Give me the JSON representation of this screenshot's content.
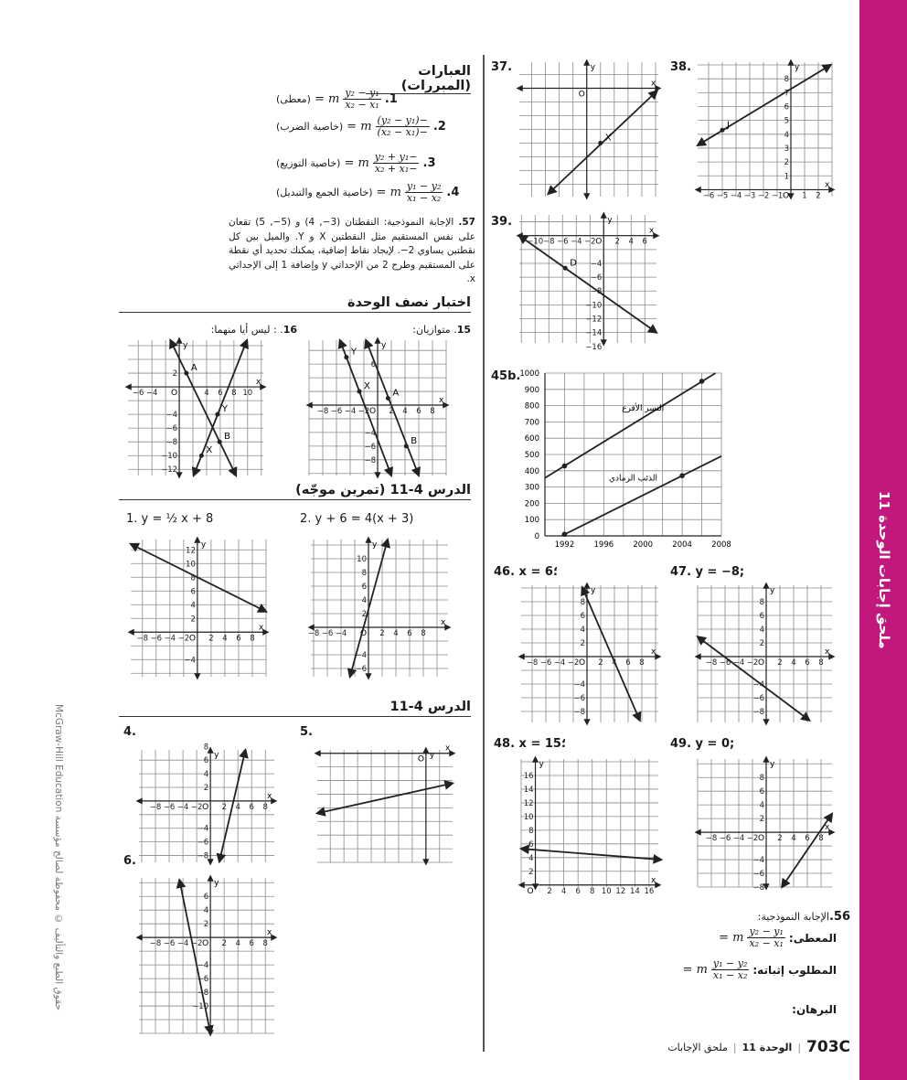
{
  "side_band": {
    "text": "ملحق إجابات الوحدة 11",
    "color": "#c2177c"
  },
  "copyright": "McGraw-Hill Education حقوق الطبع والتأليف © محفوظة لصالح مؤسسة",
  "statements": {
    "heading": "العبارات (المبررات)",
    "items": [
      {
        "num": ".1",
        "num_text": "1.",
        "lhs": "m =",
        "top": "y₂ − y₁",
        "bottom": "x₂ − x₁",
        "reason": "(معطى)"
      },
      {
        "num_text": "2.",
        "lhs": "m =",
        "top": "−(y₂ − y₁)",
        "bottom": "−(x₂ − x₁)",
        "reason": "(خاصية الضرب)"
      },
      {
        "num_text": "3.",
        "lhs": "m =",
        "top": "−y₂ + y₁",
        "bottom": "−x₂ + x₁",
        "reason": "(خاصية التوزيع)"
      },
      {
        "num_text": "4.",
        "lhs": "m =",
        "top": "y₁ − y₂",
        "bottom": "x₁ − x₂",
        "reason": "(خاصية الجمع والتبديل)"
      }
    ]
  },
  "item57": {
    "num": "57.",
    "text": "الإجابة النموذجية: النقطتان (3−, 4) و (5−, 5) تقعان على نفس المستقيم مثل النقطتين X و Y. والميل بين كل نقطتين يساوي 2−. لإيجاد نقاط إضافية، يمكنك تحديد أي نقطة على المستقيم وطرح 2 من الإحداثي y وإضافة 1 إلى الإحداثي x."
  },
  "midchapter": {
    "heading": "اختبار نصف الوحدة",
    "item15": {
      "num": "15",
      "text": ". متوازيان:"
    },
    "item16": {
      "num": "16",
      "text": ". : ليس أيا منهما:"
    }
  },
  "lesson_guided": {
    "heading": "الدرس 4-11 (تمرين موجّه)",
    "item1": "1. y = ½ x + 8",
    "item2": "2. y + 6 = 4(x + 3)"
  },
  "lesson": {
    "heading": "الدرس 4-11",
    "item4": "4.",
    "item5": "5.",
    "item6": "6."
  },
  "right": {
    "item37": "37.",
    "item38": "38.",
    "item39": "39.",
    "item45b": "45b.",
    "item46": "46. x = 6؛",
    "item47": "47. y = −8;",
    "item48": "48. x = 15؛",
    "item49": "49. y = 0;"
  },
  "item56": {
    "num": "56.",
    "intro": "الإجابة النموذجية:",
    "given_label": "المعطى:",
    "given_top": "y₂ − y₁",
    "given_bottom": "x₂ − x₁",
    "prove_label": "المطلوب إثباته:",
    "prove_top": "y₁ − y₂",
    "prove_bottom": "x₁ − x₂",
    "lhs": "m =",
    "proof_label": "البرهان:"
  },
  "footer": {
    "page": "703C",
    "unit": "الوحدة 11",
    "section": "ملحق الإجابات"
  },
  "graphs": {
    "g37": {
      "xlim": [
        -4.9,
        5.2
      ],
      "ylim": [
        -7.9,
        1.9
      ],
      "step": 1,
      "lines": [
        [
          -2.8,
          -7.7,
          5.1,
          -0.2
        ]
      ],
      "points": [
        {
          "x": 1,
          "y": -4,
          "label": "X"
        }
      ],
      "xticks": [],
      "yticks": []
    },
    "g38": {
      "xlim": [
        -6.8,
        3
      ],
      "ylim": [
        -0.5,
        9.2
      ],
      "step": 1,
      "lines": [
        [
          -6.8,
          3.2,
          2.9,
          9
        ]
      ],
      "points": [
        {
          "x": -5,
          "y": 4.3,
          "label": "J"
        }
      ],
      "xticks": [
        -6,
        -5,
        -4,
        -3,
        -2,
        -1,
        1,
        2
      ],
      "yticks": [
        1,
        2,
        3,
        4,
        5,
        6,
        7,
        8
      ]
    },
    "g39": {
      "xlim": [
        -12.3,
        7.7
      ],
      "ylim": [
        -15.5,
        3
      ],
      "step": 2,
      "lines": [
        [
          -12.3,
          0,
          7.7,
          -14
        ]
      ],
      "points": [
        {
          "x": -5.6,
          "y": -4.7,
          "label": "D"
        }
      ],
      "xticks": [
        -10,
        -8,
        -6,
        -4,
        -2,
        2,
        4,
        6
      ],
      "yticks": [
        -4,
        -6,
        -8,
        -10,
        -12,
        -14,
        -16
      ]
    },
    "g15": {
      "xlim": [
        -10,
        10
      ],
      "ylim": [
        -10.3,
        9.5
      ],
      "step": 2,
      "lines": [
        [
          -5.5,
          9.5,
          2,
          -10.3
        ],
        [
          -1.7,
          9.5,
          6,
          -10.3
        ]
      ],
      "points": [
        {
          "x": -4.55,
          "y": 7,
          "label": "Y"
        },
        {
          "x": -2.66,
          "y": 2,
          "label": "X"
        },
        {
          "x": 1.52,
          "y": 1,
          "label": "A"
        },
        {
          "x": 4.17,
          "y": -6,
          "label": "B"
        }
      ],
      "xticks": [
        -8,
        -6,
        -4,
        -2,
        2,
        4,
        6,
        8
      ],
      "yticks": [
        6,
        -4,
        -6,
        -8
      ]
    },
    "g16": {
      "xlim": [
        -7.5,
        12.3
      ],
      "ylim": [
        -12.9,
        6.8
      ],
      "step": 2,
      "lines": [
        [
          -1.3,
          6.8,
          8.3,
          -12.9
        ],
        [
          2.1,
          -12.9,
          9.9,
          6.8
        ]
      ],
      "points": [
        {
          "x": 1.04,
          "y": 2,
          "label": "A"
        },
        {
          "x": 5.6,
          "y": -4,
          "label": "Y"
        },
        {
          "x": 3.25,
          "y": -10,
          "label": "X"
        },
        {
          "x": 5.9,
          "y": -8,
          "label": "B"
        }
      ],
      "xticks": [
        -6,
        -4,
        4,
        6,
        8,
        10
      ],
      "yticks": [
        2,
        -4,
        -6,
        -8,
        -10,
        -12
      ]
    },
    "g1": {
      "xlim": [
        -9.7,
        10
      ],
      "ylim": [
        -6.5,
        13.5
      ],
      "step": 2,
      "lines": [
        [
          -9.7,
          12.85,
          10,
          3
        ]
      ],
      "points": [],
      "xticks": [
        -8,
        -6,
        -4,
        -2,
        2,
        4,
        6,
        8
      ],
      "yticks": [
        12,
        10,
        8,
        6,
        4,
        2,
        -4
      ]
    },
    "g2": {
      "xlim": [
        -8.4,
        11.6
      ],
      "ylim": [
        -7.2,
        12.8
      ],
      "step": 2,
      "lines": [
        [
          -2.7,
          -7.2,
          2.8,
          12.8
        ]
      ],
      "points": [],
      "xticks": [
        -8,
        -6,
        -4,
        2,
        4,
        6,
        8
      ],
      "yticks": [
        10,
        8,
        6,
        4,
        2,
        -4,
        -6
      ]
    },
    "g4": {
      "xlim": [
        -10.4,
        9.3
      ],
      "ylim": [
        -9,
        7.5
      ],
      "step": 2,
      "lines": [
        [
          1.3,
          -8.9,
          5.1,
          7.5
        ]
      ],
      "points": [],
      "xticks": [
        -8,
        -6,
        -4,
        -2,
        2,
        4,
        6,
        8
      ],
      "yticks": [
        8,
        6,
        4,
        2,
        -4,
        -6,
        -8
      ]
    },
    "g5": {
      "xlim": [
        -15.9,
        3.9
      ],
      "ylim": [
        -16,
        0.5
      ],
      "step": 2,
      "lines": [
        [
          -15.9,
          -8.8,
          3.9,
          -4.4
        ]
      ],
      "points": [],
      "xticks": [],
      "yticks": []
    },
    "g6": {
      "xlim": [
        -10.4,
        9.3
      ],
      "ylim": [
        -14,
        8.7
      ],
      "step": 2,
      "lines": [
        [
          -4.5,
          8.4,
          0,
          -14
        ]
      ],
      "points": [],
      "xticks": [
        -8,
        -6,
        -4,
        -2,
        2,
        4,
        6,
        8
      ],
      "yticks": [
        6,
        4,
        2,
        -4,
        -6,
        -8,
        -10
      ]
    },
    "g46": {
      "xlim": [
        -9.6,
        10.4
      ],
      "ylim": [
        -9.6,
        10.4
      ],
      "step": 2,
      "lines": [
        [
          -0.7,
          10.1,
          7.7,
          -9.3
        ]
      ],
      "points": [],
      "xticks": [
        -8,
        -6,
        -4,
        -2,
        2,
        4,
        6,
        8
      ],
      "yticks": [
        8,
        6,
        4,
        2,
        -4,
        -6,
        -8
      ]
    },
    "g47": {
      "xlim": [
        -10,
        9.6
      ],
      "ylim": [
        -9.6,
        10.4
      ],
      "step": 2,
      "lines": [
        [
          -10,
          2.9,
          6.3,
          -9.3
        ]
      ],
      "points": [],
      "xticks": [
        -8,
        -6,
        -4,
        -2,
        2,
        4,
        6,
        8
      ],
      "yticks": [
        8,
        6,
        4,
        2,
        -4,
        -6,
        -8
      ]
    },
    "g48": {
      "xlim": [
        -2,
        17.3
      ],
      "ylim": [
        -0.3,
        18.4
      ],
      "step": 2,
      "lines": [
        [
          -2,
          5.3,
          17.7,
          3.7
        ]
      ],
      "points": [],
      "xticks": [
        2,
        4,
        6,
        8,
        10,
        12,
        14,
        16
      ],
      "yticks": [
        2,
        4,
        6,
        8,
        10,
        12,
        14,
        16
      ]
    },
    "g49": {
      "xlim": [
        -10,
        9.6
      ],
      "ylim": [
        -8,
        10.7
      ],
      "step": 2,
      "lines": [
        [
          2.3,
          -8,
          9.6,
          2.7
        ]
      ],
      "points": [],
      "xticks": [
        -8,
        -6,
        -4,
        -2,
        2,
        4,
        6,
        8
      ],
      "yticks": [
        8,
        6,
        4,
        2,
        -4,
        -6,
        -8
      ]
    }
  },
  "chart_data": {
    "type": "line",
    "x": [
      1992,
      2004,
      2006
    ],
    "xlim": [
      1990,
      2008
    ],
    "ylim": [
      0,
      1000
    ],
    "xticks": [
      1992,
      1996,
      2000,
      2004,
      2008
    ],
    "yticks": [
      0,
      100,
      200,
      300,
      400,
      500,
      600,
      700,
      800,
      900,
      1000
    ],
    "grid": true,
    "series": [
      {
        "name": "النسر الأقرع",
        "points": [
          [
            1992,
            430
          ],
          [
            2006,
            950
          ]
        ],
        "line": [
          [
            1990,
            356
          ],
          [
            2007.4,
            1000
          ]
        ]
      },
      {
        "name": "الذئب الرمادي",
        "points": [
          [
            1992,
            10
          ],
          [
            2004,
            370
          ]
        ],
        "line": [
          [
            1991.7,
            0
          ],
          [
            2008,
            490
          ]
        ]
      }
    ]
  }
}
